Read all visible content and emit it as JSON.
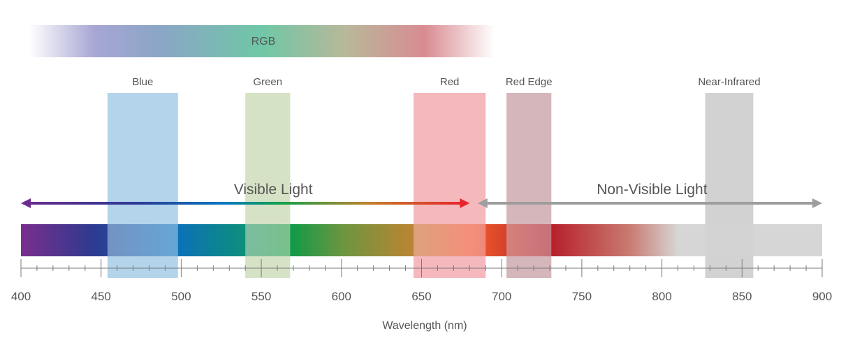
{
  "rgb_label": "RGB",
  "axis": {
    "min": 400,
    "max": 900,
    "major_ticks": [
      400,
      450,
      500,
      550,
      600,
      650,
      700,
      750,
      800,
      850,
      900
    ],
    "title": "Wavelength (nm)"
  },
  "bands": [
    {
      "label": "Blue",
      "start": 454,
      "end": 498,
      "color": "#b3d4ea"
    },
    {
      "label": "Green",
      "start": 540,
      "end": 568,
      "color": "#d6e2c5"
    },
    {
      "label": "Red",
      "start": 645,
      "end": 690,
      "color": "#f5b8bd"
    },
    {
      "label": "Red Edge",
      "start": 703,
      "end": 731,
      "color": "#d5b6bb"
    },
    {
      "label": "Near-Infrared",
      "start": 827,
      "end": 857,
      "color": "#d2d2d2"
    }
  ],
  "visible": {
    "label": "Visible Light",
    "start": 400,
    "end": 680
  },
  "non_visible": {
    "label": "Non-Visible Light",
    "start": 685,
    "end": 900
  },
  "colors": {
    "axis_line": "#7a7a7a",
    "text": "#555555",
    "non_visible_arrow": "#9e9e9e"
  }
}
